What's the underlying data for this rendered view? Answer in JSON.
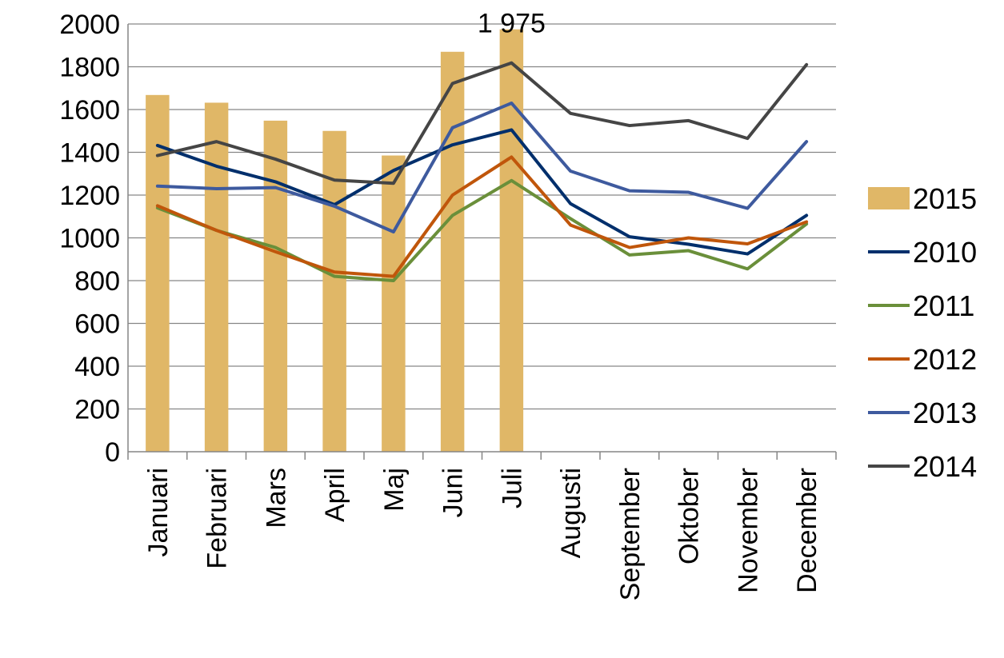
{
  "chart_data": {
    "type": "bar",
    "categories": [
      "Januari",
      "Februari",
      "Mars",
      "April",
      "Maj",
      "Juni",
      "Juli",
      "Augusti",
      "September",
      "Oktober",
      "November",
      "December"
    ],
    "ylim": [
      0,
      2000
    ],
    "yticks": [
      "0",
      "200",
      "400",
      "600",
      "800",
      "1000",
      "1200",
      "1400",
      "1600",
      "1800",
      "2000"
    ],
    "ytick_values": [
      0,
      200,
      400,
      600,
      800,
      1000,
      1200,
      1400,
      1600,
      1800,
      2000
    ],
    "grid": true,
    "legend_position": "right",
    "bar_series": {
      "name": "2015",
      "color": "#E0B767",
      "values": [
        1668,
        1632,
        1548,
        1500,
        1385,
        1870,
        1975,
        null,
        null,
        null,
        null,
        null
      ]
    },
    "line_series": [
      {
        "name": "2010",
        "color": "#002F6C",
        "values": [
          1432,
          1335,
          1262,
          1155,
          1315,
          1435,
          1505,
          1160,
          1005,
          970,
          925,
          1105
        ]
      },
      {
        "name": "2011",
        "color": "#6A8F3A",
        "values": [
          1140,
          1035,
          955,
          820,
          800,
          1105,
          1268,
          1090,
          920,
          940,
          855,
          1065
        ]
      },
      {
        "name": "2012",
        "color": "#C0560B",
        "values": [
          1150,
          1035,
          935,
          840,
          820,
          1200,
          1378,
          1060,
          955,
          1000,
          972,
          1075
        ]
      },
      {
        "name": "2013",
        "color": "#3E5A9E",
        "values": [
          1242,
          1230,
          1235,
          1148,
          1028,
          1515,
          1630,
          1312,
          1220,
          1213,
          1138,
          1450
        ]
      },
      {
        "name": "2014",
        "color": "#454545",
        "values": [
          1385,
          1450,
          1368,
          1270,
          1255,
          1722,
          1818,
          1582,
          1525,
          1548,
          1465,
          1810
        ]
      }
    ],
    "annotations": [
      {
        "category": "Juli",
        "series": "2015",
        "text": "1 975"
      }
    ]
  }
}
